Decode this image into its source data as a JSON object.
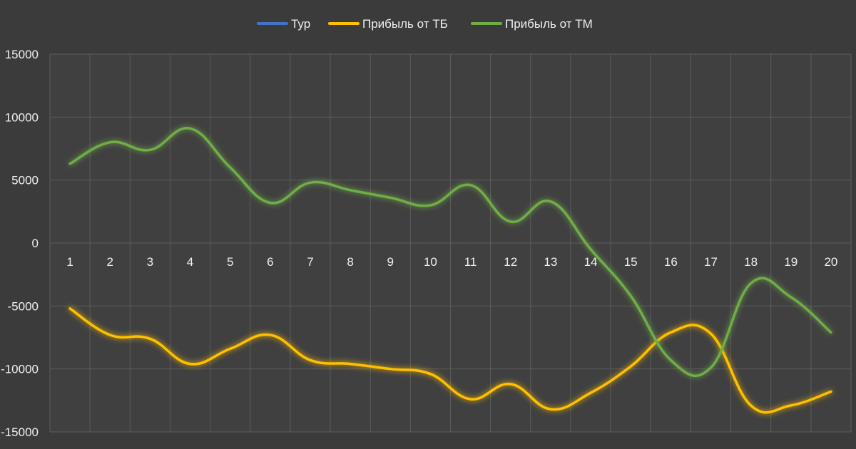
{
  "chart_data": {
    "type": "line",
    "title": "",
    "xlabel": "",
    "ylabel": "",
    "categories": [
      "1",
      "2",
      "3",
      "4",
      "5",
      "6",
      "7",
      "8",
      "9",
      "10",
      "11",
      "12",
      "13",
      "14",
      "15",
      "16",
      "17",
      "18",
      "19",
      "20"
    ],
    "ylim": [
      -15000,
      15000
    ],
    "yticks": [
      "15000",
      "10000",
      "5000",
      "0",
      "-5000",
      "-10000",
      "-15000"
    ],
    "grid": true,
    "legend_position": "top",
    "series": [
      {
        "name": "Тур",
        "color": "#4472c4",
        "values": [
          0,
          0,
          0,
          0,
          0,
          0,
          0,
          0,
          0,
          0,
          0,
          0,
          0,
          0,
          0,
          0,
          0,
          0,
          0,
          0
        ]
      },
      {
        "name": "Прибыль от ТБ",
        "color": "#ffc000",
        "values": [
          -5200,
          -7300,
          -7600,
          -9600,
          -8400,
          -7300,
          -9300,
          -9600,
          -10000,
          -10400,
          -12400,
          -11200,
          -13200,
          -11900,
          -9800,
          -7100,
          -7200,
          -12900,
          -12900,
          -11800
        ]
      },
      {
        "name": "Прибыль от ТМ",
        "color": "#70ad47",
        "values": [
          6300,
          8000,
          7400,
          9100,
          6000,
          3200,
          4800,
          4200,
          3600,
          3000,
          4600,
          1700,
          3300,
          -500,
          -4200,
          -9300,
          -9900,
          -3200,
          -4300,
          -7100
        ]
      }
    ]
  }
}
